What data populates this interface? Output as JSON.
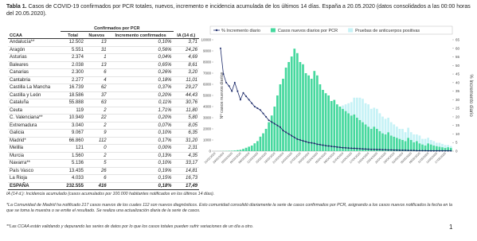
{
  "title": {
    "label": "Tabla 1.",
    "text": "Casos de COVID-19 confirmados por PCR totales, nuevos, incremento e incidencia acumulada de los últimos 14 días. España a 20.05.2020 (datos consolidados a las 00:00 horas del 20.05.2020)."
  },
  "table": {
    "group_header": "Confirmados por PCR",
    "columns": [
      "CCAA",
      "Total",
      "Nuevos",
      "Incremento confirmados",
      "IA (14 d.)"
    ],
    "rows": [
      [
        "Andalucía**",
        "12.502",
        "13",
        "0,10%",
        "3,71"
      ],
      [
        "Aragón",
        "5.551",
        "31",
        "0,56%",
        "24,26"
      ],
      [
        "Asturias",
        "2.374",
        "1",
        "0,04%",
        "4,69"
      ],
      [
        "Baleares",
        "2.038",
        "13",
        "0,65%",
        "8,61"
      ],
      [
        "Canarias",
        "2.300",
        "6",
        "0,26%",
        "3,20"
      ],
      [
        "Cantabria",
        "2.277",
        "4",
        "0,18%",
        "11,01"
      ],
      [
        "Castilla La Mancha",
        "16.739",
        "62",
        "0,37%",
        "29,27"
      ],
      [
        "Castilla y León",
        "18.586",
        "37",
        "0,20%",
        "44,43"
      ],
      [
        "Cataluña",
        "55.888",
        "63",
        "0,11%",
        "30,76"
      ],
      [
        "Ceuta",
        "119",
        "2",
        "1,71%",
        "11,80"
      ],
      [
        "C. Valenciana**",
        "10.949",
        "22",
        "0,20%",
        "5,80"
      ],
      [
        "Extremadura",
        "3.040",
        "2",
        "0,07%",
        "8,05"
      ],
      [
        "Galicia",
        "9.067",
        "9",
        "0,10%",
        "6,35"
      ],
      [
        "Madrid*",
        "66.860",
        "112",
        "0,17%",
        "31,20"
      ],
      [
        "Melilla",
        "121",
        "0",
        "0,00%",
        "2,31"
      ],
      [
        "Murcia",
        "1.560",
        "2",
        "0,13%",
        "4,35"
      ],
      [
        "Navarra**",
        "5.136",
        "5",
        "0,10%",
        "33,17"
      ],
      [
        "País Vasco",
        "13.435",
        "26",
        "0,19%",
        "14,81"
      ],
      [
        "La Rioja",
        "4.033",
        "6",
        "0,15%",
        "16,73"
      ],
      [
        "ESPAÑA",
        "232.555",
        "416",
        "0,18%",
        "17,49"
      ]
    ]
  },
  "chart_data": {
    "type": "bar",
    "stacked": true,
    "legend": "top",
    "ylabel": "Nº casos nuevos diarios",
    "y2label": "% Incremento diario",
    "ylim": [
      0,
      10000
    ],
    "yticks": [
      0,
      1000,
      2000,
      3000,
      4000,
      5000,
      6000,
      7000,
      8000,
      9000,
      10000
    ],
    "y2lim": [
      0,
      65
    ],
    "y2ticks": [
      0,
      5,
      10,
      15,
      20,
      25,
      30,
      35,
      40,
      45,
      50,
      55,
      60,
      65
    ],
    "categories": [
      "26/02/2020",
      null,
      null,
      "29/02/2020",
      null,
      null,
      "03/03/2020",
      null,
      null,
      "06/03/2020",
      null,
      null,
      "09/03/2020",
      null,
      null,
      "12/03/2020",
      null,
      null,
      "15/03/2020",
      null,
      null,
      "18/03/2020",
      null,
      null,
      "21/03/2020",
      null,
      null,
      "24/03/2020",
      null,
      null,
      "27/03/2020",
      null,
      null,
      "30/03/2020",
      null,
      null,
      "02/04/2020",
      null,
      null,
      "05/04/2020",
      null,
      null,
      "08/04/2020",
      null,
      null,
      "11/04/2020",
      null,
      null,
      "14/04/2020",
      null,
      null,
      "17/04/2020",
      null,
      null,
      "20/04/2020",
      null,
      null,
      "23/04/2020",
      null,
      null,
      "26/04/2020",
      null,
      null,
      "29/04/2020",
      null,
      null,
      "02/05/2020",
      null,
      null,
      "05/05/2020",
      null,
      null,
      "08/05/2020",
      null,
      null,
      "11/05/2020",
      null,
      null,
      "14/05/2020",
      null,
      null,
      "17/05/2020",
      null,
      null
    ],
    "series": [
      {
        "name": "% Incremento diario",
        "type": "line",
        "axis": "y2",
        "color": "#1f2d6b",
        "values": [
          null,
          null,
          60,
          45,
          40,
          38,
          35,
          40,
          35,
          30,
          34,
          32,
          30,
          28,
          26,
          25,
          24,
          22,
          20,
          18,
          17,
          16,
          15,
          14,
          12,
          11,
          10,
          9,
          8,
          7,
          6.5,
          6,
          5.5,
          5,
          4.8,
          4.5,
          4,
          3.8,
          3.5,
          3.2,
          3,
          2.8,
          2.6,
          2.4,
          2.2,
          2,
          1.9,
          1.8,
          1.7,
          1.6,
          1.5,
          1.4,
          1.3,
          1.2,
          1.1,
          1,
          1,
          0.9,
          0.9,
          0.8,
          0.8,
          0.7,
          0.7,
          0.6,
          0.6,
          0.5,
          0.5,
          0.5,
          0.4,
          0.4,
          0.4,
          0.3,
          0.3,
          0.3,
          0.3,
          0.2,
          0.2,
          0.2,
          0.2,
          0.2,
          0.2,
          0.2,
          0.2,
          0.2
        ]
      },
      {
        "name": "Casos nuevos diarios por PCR",
        "type": "bar",
        "color": "#46d89e",
        "values": [
          2,
          5,
          10,
          15,
          20,
          30,
          40,
          60,
          90,
          120,
          200,
          300,
          400,
          500,
          700,
          900,
          1300,
          1600,
          2000,
          2600,
          3200,
          4000,
          5000,
          6000,
          6500,
          7500,
          8000,
          8500,
          9200,
          8800,
          8000,
          7800,
          7000,
          6800,
          6500,
          7200,
          6800,
          6000,
          5500,
          5200,
          5000,
          4500,
          4600,
          4200,
          4000,
          3800,
          3600,
          3400,
          3200,
          3300,
          3000,
          2800,
          2600,
          2400,
          2200,
          2000,
          2200,
          2000,
          1800,
          1600,
          1500,
          1700,
          1400,
          1300,
          1200,
          1100,
          1000,
          900,
          1200,
          1000,
          800,
          900,
          700,
          600,
          500,
          700,
          600,
          500,
          450,
          400,
          350,
          300,
          350,
          300
        ]
      },
      {
        "name": "Pruebas de anticuerpos positivas",
        "type": "bar",
        "color": "#c6f2f6",
        "values": [
          0,
          0,
          0,
          0,
          0,
          0,
          0,
          0,
          0,
          0,
          0,
          0,
          0,
          0,
          0,
          0,
          0,
          0,
          0,
          0,
          0,
          0,
          0,
          0,
          0,
          0,
          0,
          0,
          0,
          0,
          0,
          0,
          0,
          0,
          0,
          0,
          0,
          0,
          0,
          0,
          0,
          0,
          0,
          0,
          0,
          300,
          600,
          900,
          1200,
          1500,
          1800,
          2000,
          2100,
          1900,
          2000,
          1800,
          1700,
          1800,
          1600,
          1500,
          1400,
          1300,
          1200,
          1100,
          1000,
          900,
          1000,
          800,
          900,
          700,
          700,
          600,
          700,
          500,
          600,
          500,
          400,
          400,
          300,
          350,
          300,
          250,
          200,
          150
        ]
      }
    ]
  },
  "notes": [
    "IA (14 d.): Incidencia acumulado (casos acumulados por 100.000 habitantes notificados en los últimos 14 días).",
    "*La Comunidad de Madrid ha notificado 217 casos nuevos de los cuales 112 son nuevos diagnósticos. Esto comunidad consolidó diariamente la serie de casos confirmados por PCR, asignando a los casos nuevos notificados la fecha en la que se toma la muestra o se emite el resultado. Se realiza una actualización diaria de la serie de casos.",
    "**Las CCAA están validando y depurando las series de datos por lo que los casos totales pueden sufrir variaciones de un día a otro."
  ],
  "page_number": "1"
}
